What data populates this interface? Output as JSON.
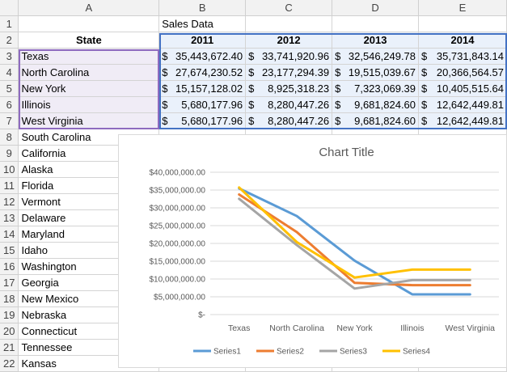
{
  "columns": [
    "A",
    "B",
    "C",
    "D",
    "E"
  ],
  "rows": [
    "1",
    "2",
    "3",
    "4",
    "5",
    "6",
    "7",
    "8",
    "9",
    "10",
    "11",
    "12",
    "13",
    "14",
    "15",
    "16",
    "17",
    "18",
    "19",
    "20",
    "21",
    "22"
  ],
  "sheet": {
    "title": "Sales Data",
    "header_state": "State",
    "years": [
      "2011",
      "2012",
      "2013",
      "2014"
    ],
    "data_rows": [
      {
        "state": "Texas",
        "values": [
          "35,443,672.40",
          "33,741,920.96",
          "32,546,249.78",
          "35,731,843.14"
        ]
      },
      {
        "state": "North Carolina",
        "values": [
          "27,674,230.52",
          "23,177,294.39",
          "19,515,039.67",
          "20,366,564.57"
        ]
      },
      {
        "state": "New York",
        "values": [
          "15,157,128.02",
          "8,925,318.23",
          "7,323,069.39",
          "10,405,515.64"
        ]
      },
      {
        "state": "Illinois",
        "values": [
          "5,680,177.96",
          "8,280,447.26",
          "9,681,824.60",
          "12,642,449.81"
        ]
      },
      {
        "state": "West Virginia",
        "values": [
          "5,680,177.96",
          "8,280,447.26",
          "9,681,824.60",
          "12,642,449.81"
        ]
      }
    ],
    "currency": "$",
    "other_states": [
      "South Carolina",
      "California",
      "Alaska",
      "Florida",
      "Vermont",
      "Delaware",
      "Maryland",
      "Idaho",
      "Washington",
      "Georgia",
      "New Mexico",
      "Nebraska",
      "Connecticut",
      "Tennessee",
      "Kansas"
    ]
  },
  "chart_data": {
    "type": "line",
    "title": "Chart Title",
    "categories": [
      "Texas",
      "North Carolina",
      "New York",
      "Illinois",
      "West Virginia"
    ],
    "series": [
      {
        "name": "Series1",
        "color": "#5b9bd5",
        "values": [
          35443672.4,
          27674230.52,
          15157128.02,
          5680177.96,
          5680177.96
        ]
      },
      {
        "name": "Series2",
        "color": "#ed7d31",
        "values": [
          33741920.96,
          23177294.39,
          8925318.23,
          8280447.26,
          8280447.26
        ]
      },
      {
        "name": "Series3",
        "color": "#a5a5a5",
        "values": [
          32546249.78,
          19515039.67,
          7323069.39,
          9681824.6,
          9681824.6
        ]
      },
      {
        "name": "Series4",
        "color": "#ffc000",
        "values": [
          35731843.14,
          20366564.57,
          10405515.64,
          12642449.81,
          12642449.81
        ]
      }
    ],
    "y_ticks": [
      "$-",
      "$5,000,000.00",
      "$10,000,000.00",
      "$15,000,000.00",
      "$20,000,000.00",
      "$25,000,000.00",
      "$30,000,000.00",
      "$35,000,000.00",
      "$40,000,000.00"
    ],
    "ylim": [
      0,
      40000000
    ],
    "grid": true,
    "legend": "bottom"
  }
}
